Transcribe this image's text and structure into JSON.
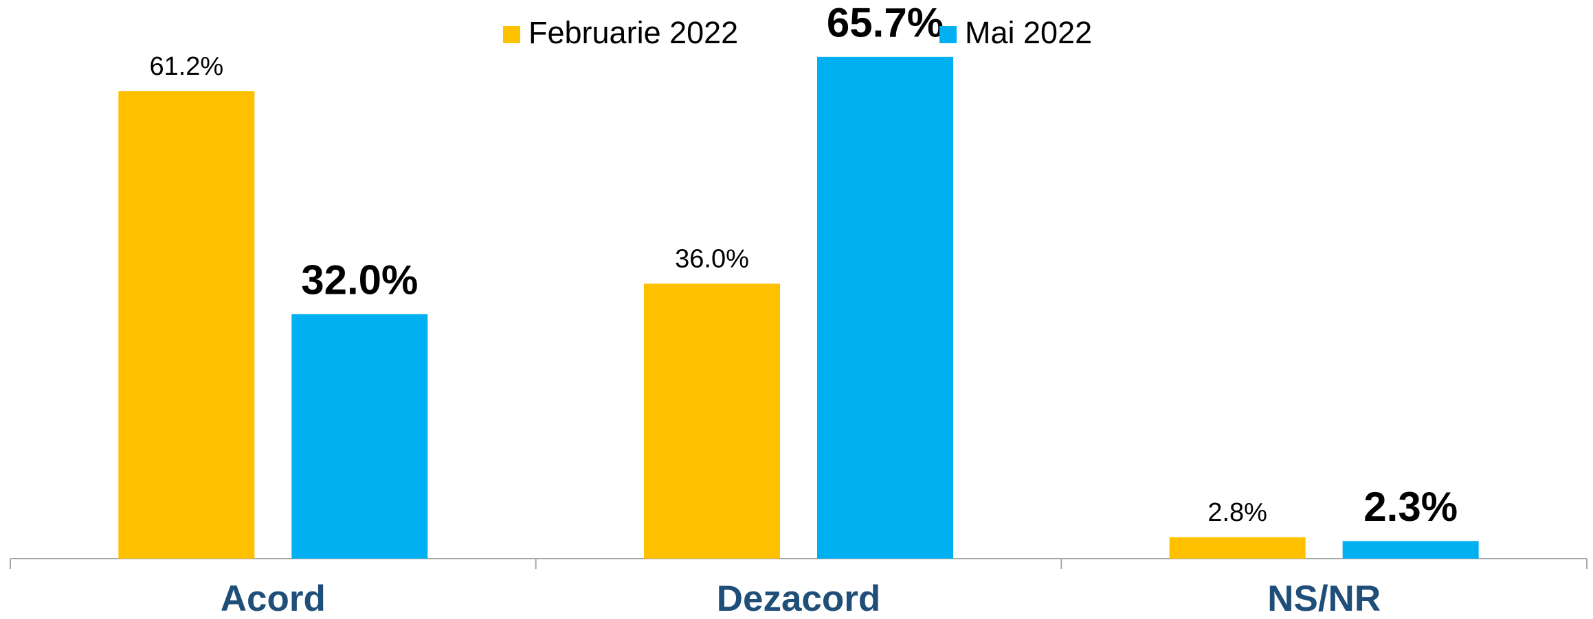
{
  "chart_data": {
    "type": "bar",
    "categories": [
      "Acord",
      "Dezacord",
      "NS/NR"
    ],
    "series": [
      {
        "name": "Februarie 2022",
        "color": "#FFC000",
        "values": [
          61.2,
          36.0,
          2.8
        ],
        "value_labels": [
          "61.2%",
          "36.0%",
          "2.8%"
        ]
      },
      {
        "name": "Mai 2022",
        "color": "#00B0F0",
        "values": [
          32.0,
          65.7,
          2.3
        ],
        "value_labels": [
          "32.0%",
          "65.7%",
          "2.3%"
        ]
      }
    ],
    "ylim": [
      0,
      70
    ],
    "legend": "top"
  }
}
